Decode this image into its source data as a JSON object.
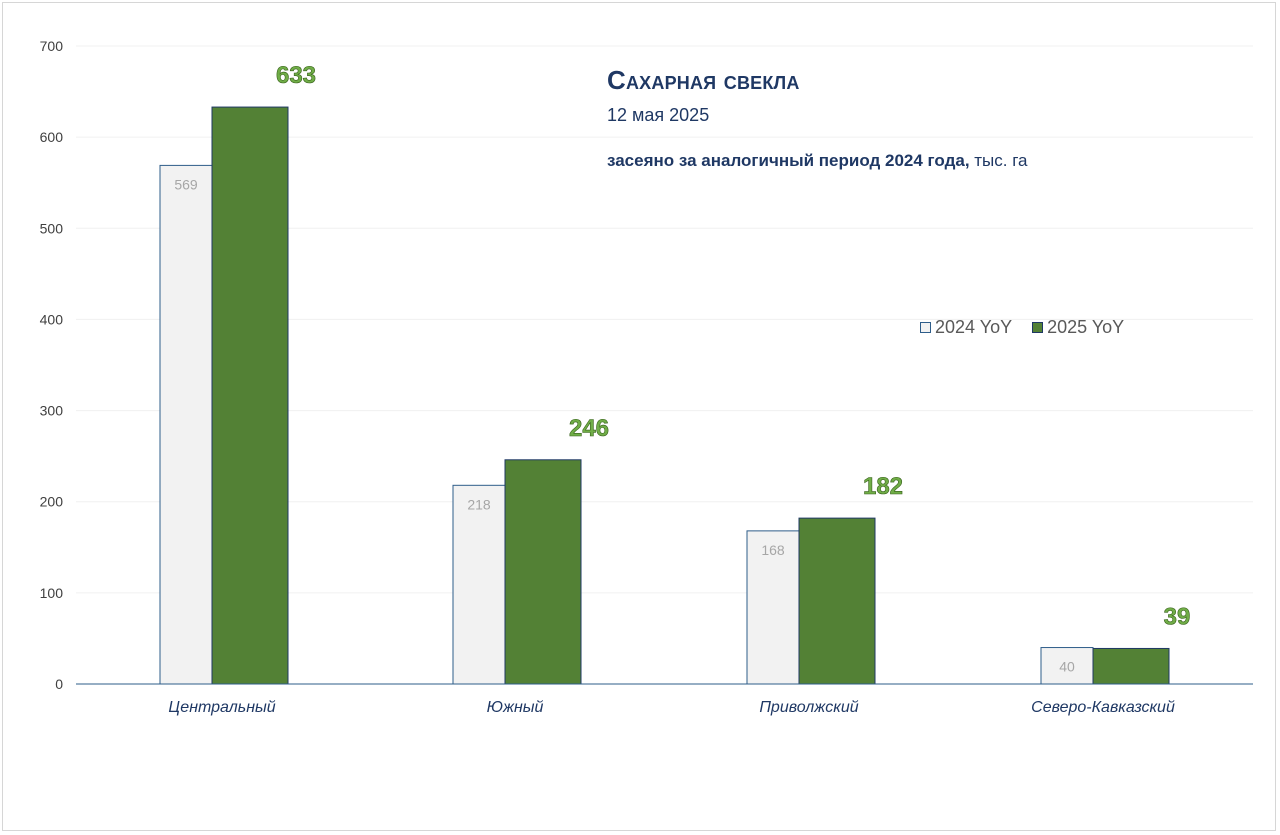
{
  "title": {
    "main": "Сахарная свекла",
    "date": "12 мая 2025",
    "note_bold": "засеяно за аналогичный период 2024 года,",
    "note_unit": " тыс. га"
  },
  "legend": {
    "items": [
      {
        "label": "2024 YoY"
      },
      {
        "label": "2025 YoY"
      }
    ]
  },
  "colors": {
    "series_2024_fill": "#f2f2f2",
    "series_2024_stroke": "#2e5d8a",
    "series_2025_fill": "#538135",
    "series_2025_label": "#70ad47",
    "axis_text": "#404040",
    "category_text": "#1f3864",
    "gridline": "#f0f0f0",
    "axis_line": "#2e5d8a"
  },
  "chart_data": {
    "type": "bar",
    "categories": [
      "Центральный",
      "Южный",
      "Приволжский",
      "Северо-Кавказский"
    ],
    "series": [
      {
        "name": "2024 YoY",
        "values": [
          569,
          218,
          168,
          40
        ]
      },
      {
        "name": "2025 YoY",
        "values": [
          633,
          246,
          182,
          39
        ]
      }
    ],
    "ylim": [
      0,
      700
    ],
    "yticks": [
      0,
      100,
      200,
      300,
      400,
      500,
      600,
      700
    ],
    "grid": true,
    "legend_position": "right"
  }
}
